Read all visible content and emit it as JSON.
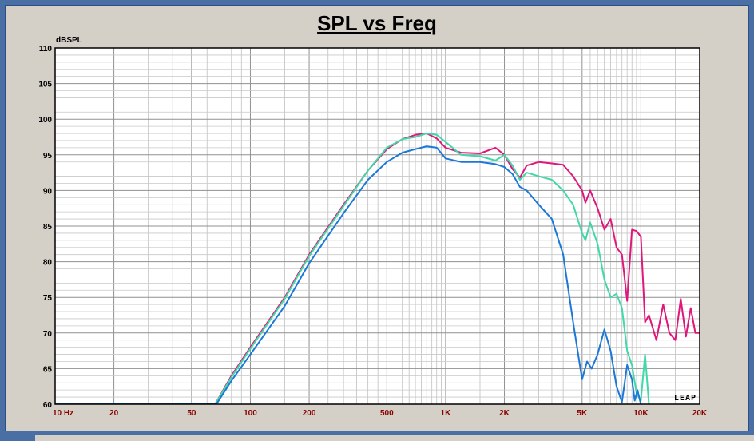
{
  "chart_data": {
    "type": "line",
    "title": "SPL vs Freq",
    "ylabel": "dBSPL",
    "xlabel": "",
    "xscale": "log",
    "xlim": [
      10,
      20000
    ],
    "ylim": [
      60,
      110
    ],
    "grid": true,
    "yticks": [
      "110",
      "105",
      "100",
      "95",
      "90",
      "85",
      "80",
      "75",
      "70",
      "65",
      "60"
    ],
    "xticks": [
      {
        "value": 10,
        "label": "10 Hz"
      },
      {
        "value": 20,
        "label": "20"
      },
      {
        "value": 50,
        "label": "50"
      },
      {
        "value": 100,
        "label": "100"
      },
      {
        "value": 200,
        "label": "200"
      },
      {
        "value": 500,
        "label": "500"
      },
      {
        "value": 1000,
        "label": "1K"
      },
      {
        "value": 2000,
        "label": "2K"
      },
      {
        "value": 5000,
        "label": "5K"
      },
      {
        "value": 10000,
        "label": "10K"
      },
      {
        "value": 20000,
        "label": "20K"
      }
    ],
    "series": [
      {
        "color": "#e0167a",
        "x": [
          10,
          66,
          80,
          100,
          150,
          200,
          300,
          400,
          500,
          600,
          700,
          800,
          900,
          1000,
          1200,
          1500,
          1800,
          2000,
          2200,
          2400,
          2600,
          3000,
          3500,
          4000,
          4500,
          5000,
          5200,
          5500,
          6000,
          6500,
          7000,
          7500,
          8000,
          8500,
          9000,
          9500,
          10000,
          10500,
          11000,
          12000,
          13000,
          14000,
          15000,
          16000,
          17000,
          18000,
          19000,
          20000
        ],
        "y": [
          60,
          60,
          64,
          68,
          75,
          81,
          88,
          92.8,
          95.8,
          97.2,
          97.8,
          98,
          97.3,
          96,
          95.3,
          95.2,
          96,
          95,
          93,
          91.8,
          93.5,
          94,
          93.8,
          93.6,
          92,
          90,
          88.3,
          90,
          87.5,
          84.5,
          86,
          82,
          81,
          74.5,
          84.5,
          84.3,
          83.5,
          71.5,
          72.5,
          69,
          74,
          70,
          69,
          74.8,
          69.5,
          73.5,
          70,
          70
        ]
      },
      {
        "color": "#40d8a8",
        "x": [
          10,
          66,
          80,
          100,
          150,
          200,
          300,
          400,
          500,
          600,
          700,
          800,
          900,
          1000,
          1200,
          1500,
          1800,
          2000,
          2200,
          2400,
          2600,
          3000,
          3500,
          4000,
          4500,
          5000,
          5200,
          5500,
          6000,
          6500,
          7000,
          7500,
          8000,
          8500,
          9000,
          9500,
          10000,
          10500,
          11000
        ],
        "y": [
          60,
          60,
          63.8,
          67.8,
          74.8,
          80.8,
          87.8,
          92.8,
          96,
          97.2,
          97.5,
          98,
          97.8,
          96.8,
          95,
          94.8,
          94.2,
          95,
          93.5,
          91.5,
          92.5,
          92,
          91.5,
          90,
          88,
          84,
          83,
          85.5,
          82.5,
          77.5,
          75,
          75.5,
          73.5,
          67.5,
          65.5,
          61.5,
          60.5,
          67,
          60
        ]
      },
      {
        "color": "#1a78d8",
        "x": [
          10,
          67,
          80,
          100,
          150,
          200,
          300,
          400,
          500,
          600,
          700,
          800,
          900,
          1000,
          1200,
          1500,
          1800,
          2000,
          2200,
          2400,
          2600,
          3000,
          3500,
          4000,
          4500,
          5000,
          5300,
          5600,
          6000,
          6500,
          7000,
          7500,
          8000,
          8500,
          9000,
          9300,
          9600,
          10000
        ],
        "y": [
          60,
          60,
          63.3,
          67,
          73.8,
          79.8,
          86.8,
          91.5,
          94,
          95.3,
          95.8,
          96.2,
          96,
          94.5,
          94,
          94,
          93.7,
          93.3,
          92.3,
          90.5,
          90,
          88,
          86,
          81,
          71.5,
          63.5,
          66,
          65,
          67,
          70.5,
          67.5,
          62.5,
          60.3,
          65.5,
          63.5,
          60.5,
          62,
          60
        ]
      }
    ]
  },
  "logo_text": "LEAP"
}
